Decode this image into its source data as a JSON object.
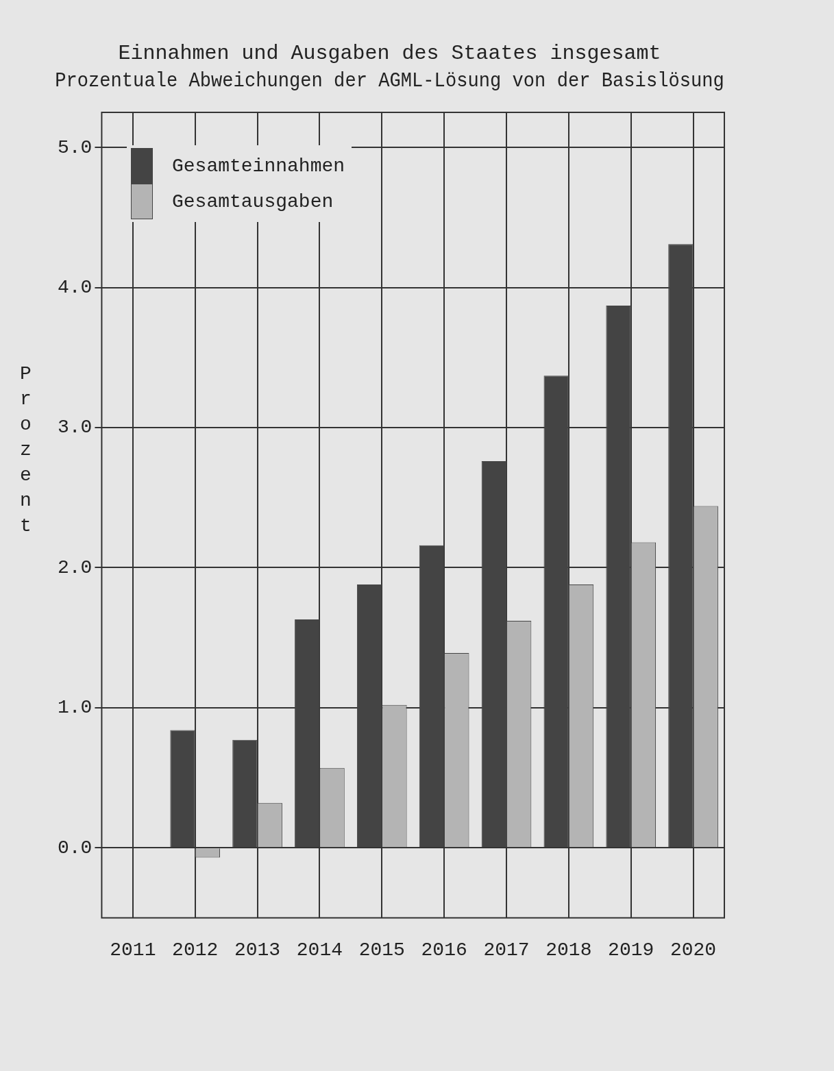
{
  "chart_data": {
    "type": "bar",
    "title": "Einnahmen und Ausgaben des Staates insgesamt",
    "subtitle": "Prozentuale Abweichungen der AGML-Lösung von der Basislösung",
    "ylabel": "Prozent",
    "categories": [
      "2011",
      "2012",
      "2013",
      "2014",
      "2015",
      "2016",
      "2017",
      "2018",
      "2019",
      "2020"
    ],
    "series": [
      {
        "name": "Gesamteinnahmen",
        "color": "#444444",
        "values": [
          0,
          0.84,
          0.77,
          1.63,
          1.88,
          2.16,
          2.76,
          3.37,
          3.87,
          4.31
        ]
      },
      {
        "name": "Gesamtausgaben",
        "color": "#b4b4b4",
        "values": [
          0,
          -0.07,
          0.32,
          0.57,
          1.02,
          1.39,
          1.62,
          1.88,
          2.18,
          2.44
        ]
      }
    ],
    "ylim": [
      -0.5,
      5.25
    ],
    "yticks": [
      {
        "value": 0,
        "label": "0.0"
      },
      {
        "value": 1,
        "label": "1.0"
      },
      {
        "value": 2,
        "label": "2.0"
      },
      {
        "value": 3,
        "label": "3.0"
      },
      {
        "value": 4,
        "label": "4.0"
      },
      {
        "value": 5,
        "label": "5.0"
      }
    ],
    "grid": true,
    "legend": "top left"
  }
}
